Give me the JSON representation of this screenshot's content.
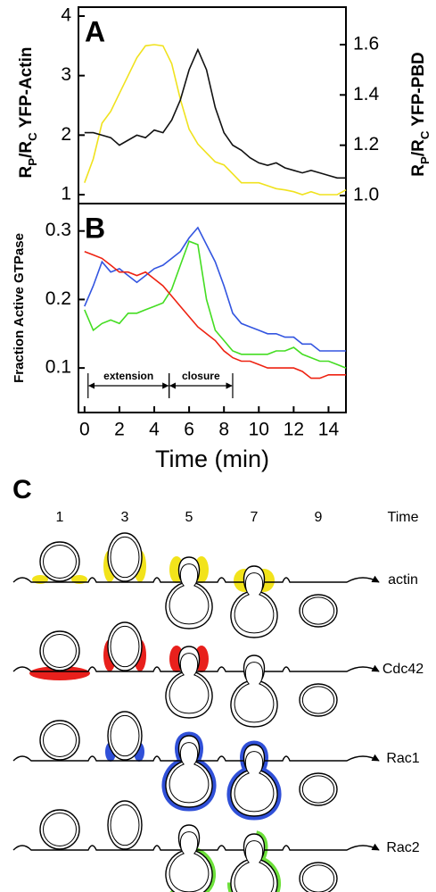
{
  "chart_data": [
    {
      "type": "line",
      "panel": "A",
      "ylabel": [
        "R",
        "P",
        "/R",
        "C",
        " YFP-Actin"
      ],
      "y2label": [
        "R",
        "P",
        "/R",
        "C",
        " YFP-PBD"
      ],
      "x": [
        0,
        0.5,
        1,
        1.5,
        2,
        2.5,
        3,
        3.5,
        4,
        4.5,
        5,
        5.5,
        6,
        6.5,
        7,
        7.5,
        8,
        8.5,
        9,
        9.5,
        10,
        10.5,
        11,
        11.5,
        12,
        12.5,
        13,
        13.5,
        14,
        14.5,
        15
      ],
      "xlim": [
        -0.35,
        15
      ],
      "ylim": [
        0.85,
        4.15
      ],
      "yticks": [
        1,
        2,
        3,
        4
      ],
      "y2lim": [
        0.968,
        1.749
      ],
      "y2ticks": [
        {
          "value": 1,
          "label": "1.0"
        },
        1.2,
        1.4,
        1.6
      ],
      "series": [
        {
          "color": "#f0e21e",
          "values": [
            1.2,
            1.6,
            2.2,
            2.4,
            2.7,
            3.0,
            3.3,
            3.5,
            3.52,
            3.5,
            3.2,
            2.6,
            2.1,
            1.85,
            1.7,
            1.55,
            1.5,
            1.35,
            1.2,
            1.2,
            1.2,
            1.15,
            1.1,
            1.08,
            1.05,
            1.0,
            1.05,
            1.0,
            1.0,
            1.0,
            1.08
          ]
        },
        {
          "color": "#111111",
          "axis": "y2",
          "values": [
            1.25,
            1.25,
            1.24,
            1.23,
            1.2,
            1.22,
            1.24,
            1.23,
            1.26,
            1.25,
            1.3,
            1.38,
            1.5,
            1.58,
            1.5,
            1.35,
            1.25,
            1.2,
            1.18,
            1.15,
            1.13,
            1.12,
            1.13,
            1.11,
            1.1,
            1.09,
            1.1,
            1.09,
            1.08,
            1.07,
            1.07
          ]
        }
      ]
    },
    {
      "type": "line",
      "panel": "B",
      "ylabel": [
        "Fraction Active GTPase"
      ],
      "xlabel": "Time (min)",
      "x": [
        0,
        0.5,
        1,
        1.5,
        2,
        2.5,
        3,
        3.5,
        4,
        4.5,
        5,
        5.5,
        6,
        6.5,
        7,
        7.5,
        8,
        8.5,
        9,
        9.5,
        10,
        10.5,
        11,
        11.5,
        12,
        12.5,
        13,
        13.5,
        14,
        14.5,
        15
      ],
      "xlim": [
        -0.35,
        15
      ],
      "xticks": [
        0,
        2,
        4,
        6,
        8,
        10,
        12,
        14
      ],
      "ylim": [
        0.035,
        0.34
      ],
      "yticks": [
        0.1,
        0.2,
        0.3
      ],
      "series": [
        {
          "color": "#3355e0",
          "values": [
            0.19,
            0.22,
            0.255,
            0.24,
            0.245,
            0.235,
            0.225,
            0.235,
            0.245,
            0.25,
            0.26,
            0.27,
            0.29,
            0.305,
            0.28,
            0.255,
            0.22,
            0.18,
            0.165,
            0.16,
            0.155,
            0.15,
            0.15,
            0.145,
            0.145,
            0.135,
            0.135,
            0.125,
            0.125,
            0.125,
            0.125
          ]
        },
        {
          "color": "#44dd22",
          "values": [
            0.185,
            0.155,
            0.165,
            0.17,
            0.165,
            0.18,
            0.18,
            0.185,
            0.19,
            0.195,
            0.215,
            0.25,
            0.285,
            0.28,
            0.2,
            0.155,
            0.14,
            0.125,
            0.12,
            0.12,
            0.12,
            0.12,
            0.125,
            0.125,
            0.13,
            0.12,
            0.115,
            0.11,
            0.11,
            0.105,
            0.1
          ]
        },
        {
          "color": "#ee2211",
          "values": [
            0.27,
            0.265,
            0.26,
            0.25,
            0.24,
            0.24,
            0.235,
            0.24,
            0.23,
            0.22,
            0.205,
            0.19,
            0.175,
            0.16,
            0.15,
            0.14,
            0.125,
            0.115,
            0.11,
            0.11,
            0.105,
            0.1,
            0.1,
            0.1,
            0.1,
            0.095,
            0.085,
            0.085,
            0.09,
            0.09,
            0.09
          ]
        }
      ],
      "annotations": [
        {
          "text": "extension",
          "x": [
            0.2,
            4.85
          ]
        },
        {
          "text": "closure",
          "x": [
            4.85,
            8.5
          ]
        }
      ]
    }
  ],
  "diagram": {
    "label": "C",
    "columns": [
      "1",
      "3",
      "5",
      "7",
      "9"
    ],
    "time_label": "Time",
    "rows": [
      {
        "label": "actin",
        "color": "#f2e31b"
      },
      {
        "label": "Cdc42",
        "color": "#e8201c"
      },
      {
        "label": "Rac1",
        "color": "#3050d8"
      },
      {
        "label": "Rac2",
        "color": "#6de03a"
      }
    ]
  }
}
